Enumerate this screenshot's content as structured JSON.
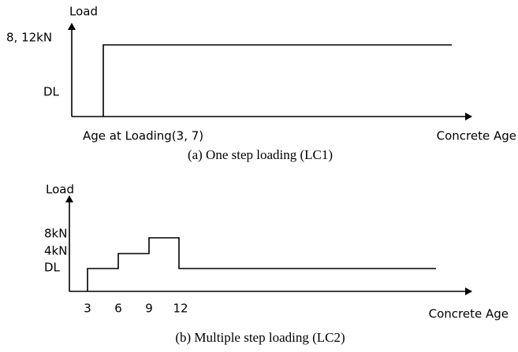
{
  "diagram_a": {
    "y_axis_label": "Load",
    "y_labels": [
      "8, 12kN",
      "DL"
    ],
    "x_step_label": "Age at Loading(3, 7)",
    "x_axis_label": "Concrete Age",
    "caption": "(a) One step loading (LC1)"
  },
  "diagram_b": {
    "y_axis_label": "Load",
    "y_labels": [
      "8kN",
      "4kN",
      "DL"
    ],
    "x_labels": [
      "3",
      "6",
      "9",
      "12"
    ],
    "x_axis_label": "Concrete Age",
    "caption": "(b) Multiple step loading (LC2)"
  }
}
